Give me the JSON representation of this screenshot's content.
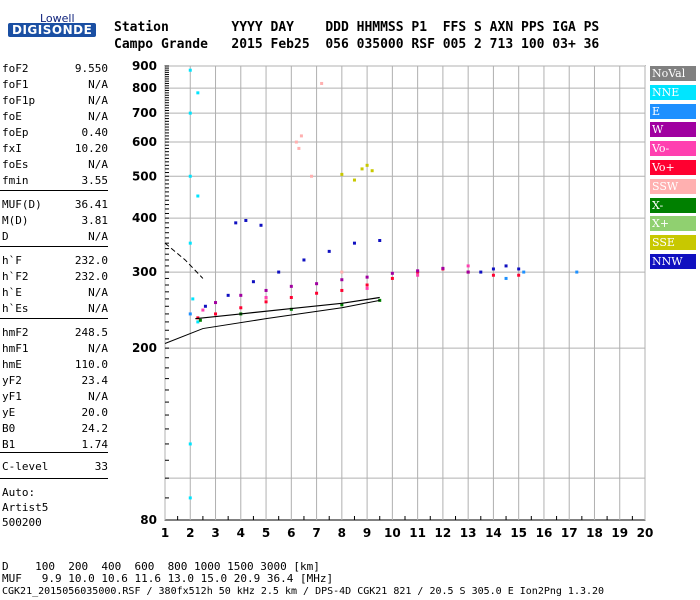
{
  "logo": {
    "top": "Lowell",
    "main": "DIGISONDE"
  },
  "header": {
    "line1": "Station        YYYY DAY    DDD HHMMSS P1  FFS S AXN PPS IGA PS",
    "line2": "Campo Grande   2015 Feb25  056 035000 RSF 005 2 713 100 03+ 36"
  },
  "params": [
    {
      "name": "foF2",
      "value": "9.550"
    },
    {
      "name": "foF1",
      "value": "N/A"
    },
    {
      "name": "foF1p",
      "value": "N/A"
    },
    {
      "name": "foE",
      "value": "N/A"
    },
    {
      "name": "foEp",
      "value": "0.40"
    },
    {
      "name": "fxI",
      "value": "10.20"
    },
    {
      "name": "foEs",
      "value": "N/A"
    },
    {
      "name": "fmin",
      "value": "3.55"
    },
    {
      "name": "MUF(D)",
      "value": "36.41"
    },
    {
      "name": "M(D)",
      "value": "3.81"
    },
    {
      "name": "D",
      "value": "N/A"
    },
    {
      "name": "h`F",
      "value": "232.0"
    },
    {
      "name": "h`F2",
      "value": "232.0"
    },
    {
      "name": "h`E",
      "value": "N/A"
    },
    {
      "name": "h`Es",
      "value": "N/A"
    },
    {
      "name": "hmF2",
      "value": "248.5"
    },
    {
      "name": "hmF1",
      "value": "N/A"
    },
    {
      "name": "hmE",
      "value": "110.0"
    },
    {
      "name": "yF2",
      "value": "23.4"
    },
    {
      "name": "yF1",
      "value": "N/A"
    },
    {
      "name": "yE",
      "value": "20.0"
    },
    {
      "name": "B0",
      "value": "24.2"
    },
    {
      "name": "B1",
      "value": "1.74"
    },
    {
      "name": "C-level",
      "value": "33"
    }
  ],
  "auto": {
    "line1": "Auto:",
    "line2": "Artist5",
    "line3": "500200"
  },
  "bottom": {
    "d_line": "D    100  200  400  600  800 1000 1500 3000 [km]",
    "muf_line": "MUF   9.9 10.0 10.6 11.6 13.0 15.0 20.9 36.4 [MHz]",
    "file_line": "CGK21_2015056035000.RSF / 380fx512h 50 kHz 2.5 km / DPS-4D CGK21 821 / 20.5 S 305.0 E Ion2Png 1.3.20"
  },
  "legend": [
    {
      "label": "NoVal",
      "color": "#808080"
    },
    {
      "label": "NNE",
      "color": "#00e5ff"
    },
    {
      "label": "E",
      "color": "#1e90ff"
    },
    {
      "label": "W",
      "color": "#a000a0"
    },
    {
      "label": "Vo-",
      "color": "#ff40b0"
    },
    {
      "label": "Vo+",
      "color": "#ff0030"
    },
    {
      "label": "SSW",
      "color": "#ffb0b0"
    },
    {
      "label": "X-",
      "color": "#008000"
    },
    {
      "label": "X+",
      "color": "#90d070"
    },
    {
      "label": "SSE",
      "color": "#c8c800"
    },
    {
      "label": "NNW",
      "color": "#1010c0"
    }
  ],
  "chart_data": {
    "type": "scatter",
    "title": "",
    "xlabel": "",
    "ylabel": "",
    "xlim": [
      1,
      20
    ],
    "ylim": [
      80,
      900
    ],
    "x_ticks": [
      "1",
      "2",
      "3",
      "4",
      "5",
      "6",
      "7",
      "8",
      "9",
      "10",
      "11",
      "12",
      "13",
      "14",
      "15",
      "16",
      "17",
      "18",
      "19",
      "20"
    ],
    "y_ticks": [
      "80",
      "200",
      "300",
      "400",
      "500",
      "600",
      "700",
      "800",
      "900"
    ],
    "grid": true,
    "y_scale": "log",
    "series": [
      {
        "name": "NNE",
        "points": [
          [
            2.0,
            880
          ],
          [
            2.0,
            700
          ],
          [
            2.0,
            500
          ],
          [
            2.0,
            350
          ],
          [
            2.1,
            260
          ],
          [
            2.0,
            120
          ],
          [
            2.0,
            90
          ],
          [
            2.3,
            780
          ],
          [
            2.3,
            450
          ],
          [
            2.3,
            230
          ]
        ]
      },
      {
        "name": "NNW",
        "points": [
          [
            2.6,
            250
          ],
          [
            3.5,
            265
          ],
          [
            4.5,
            285
          ],
          [
            5.5,
            300
          ],
          [
            6.5,
            320
          ],
          [
            7.5,
            335
          ],
          [
            8.5,
            350
          ],
          [
            9.5,
            355
          ],
          [
            13.5,
            300
          ],
          [
            14.0,
            305
          ],
          [
            14.5,
            310
          ],
          [
            15.0,
            305
          ],
          [
            3.8,
            390
          ],
          [
            4.2,
            395
          ],
          [
            4.8,
            385
          ]
        ]
      },
      {
        "name": "Vo+",
        "points": [
          [
            2.3,
            235
          ],
          [
            3.0,
            240
          ],
          [
            4.0,
            248
          ],
          [
            5.0,
            256
          ],
          [
            6.0,
            262
          ],
          [
            7.0,
            268
          ],
          [
            8.0,
            272
          ],
          [
            9.0,
            280
          ],
          [
            10.0,
            290
          ],
          [
            11.0,
            300
          ],
          [
            12.0,
            305
          ],
          [
            13.0,
            300
          ],
          [
            14.0,
            295
          ],
          [
            15.0,
            295
          ]
        ]
      },
      {
        "name": "W",
        "points": [
          [
            3.0,
            255
          ],
          [
            4.0,
            265
          ],
          [
            5.0,
            272
          ],
          [
            6.0,
            278
          ],
          [
            7.0,
            282
          ],
          [
            8.0,
            288
          ],
          [
            9.0,
            292
          ],
          [
            10.0,
            298
          ],
          [
            11.0,
            302
          ],
          [
            12.0,
            306
          ],
          [
            13.0,
            300
          ]
        ]
      },
      {
        "name": "X-",
        "points": [
          [
            2.4,
            232
          ],
          [
            4.0,
            240
          ],
          [
            6.0,
            246
          ],
          [
            8.0,
            252
          ],
          [
            9.5,
            258
          ]
        ]
      },
      {
        "name": "SSW",
        "points": [
          [
            6.2,
            600
          ],
          [
            6.4,
            620
          ],
          [
            6.3,
            580
          ],
          [
            7.2,
            820
          ],
          [
            6.8,
            500
          ],
          [
            5.0,
            260
          ],
          [
            8.0,
            300
          ]
        ]
      },
      {
        "name": "SSE",
        "points": [
          [
            8.8,
            520
          ],
          [
            9.0,
            530
          ],
          [
            9.2,
            515
          ],
          [
            8.5,
            490
          ],
          [
            8.0,
            505
          ]
        ]
      },
      {
        "name": "Vo-",
        "points": [
          [
            2.5,
            245
          ],
          [
            5.0,
            262
          ],
          [
            9.0,
            275
          ],
          [
            11.0,
            295
          ],
          [
            13.0,
            310
          ]
        ]
      },
      {
        "name": "E",
        "points": [
          [
            2.0,
            240
          ],
          [
            14.5,
            290
          ],
          [
            15.2,
            300
          ],
          [
            17.3,
            300
          ]
        ]
      }
    ]
  }
}
